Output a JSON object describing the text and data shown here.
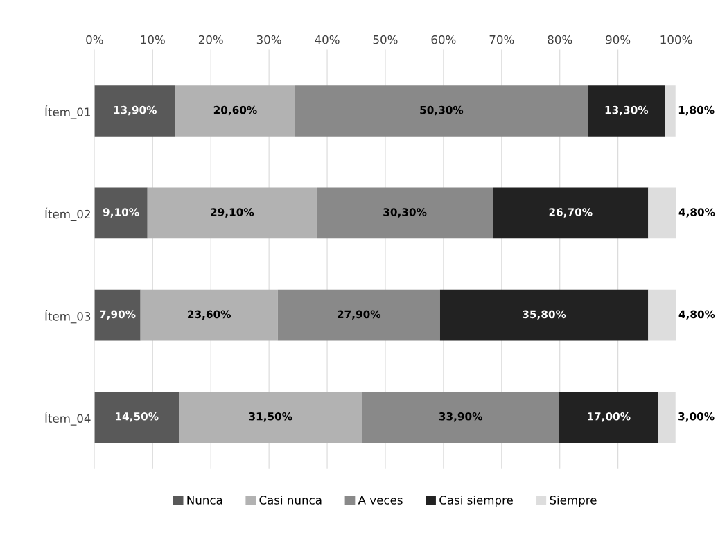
{
  "chart_data": {
    "type": "bar",
    "orientation": "horizontal",
    "stacked": true,
    "categories": [
      "Ítem_01",
      "Ítem_02",
      "Ítem_03",
      "Ítem_04"
    ],
    "series": [
      {
        "name": "Nunca",
        "color": "#595959",
        "values": [
          13.9,
          9.1,
          7.9,
          14.5
        ],
        "value_labels": [
          "13,90%",
          "9,10%",
          "7,90%",
          "14,50%"
        ]
      },
      {
        "name": "Casi nunca",
        "color": "#b2b2b2",
        "values": [
          20.6,
          29.1,
          23.6,
          31.5
        ],
        "value_labels": [
          "20,60%",
          "29,10%",
          "23,60%",
          "31,50%"
        ]
      },
      {
        "name": "A veces",
        "color": "#898989",
        "values": [
          50.3,
          30.3,
          27.9,
          33.9
        ],
        "value_labels": [
          "50,30%",
          "30,30%",
          "27,90%",
          "33,90%"
        ]
      },
      {
        "name": "Casi siempre",
        "color": "#222222",
        "values": [
          13.3,
          26.7,
          35.8,
          17.0
        ],
        "value_labels": [
          "13,30%",
          "26,70%",
          "35,80%",
          "17,00%"
        ]
      },
      {
        "name": "Siempre",
        "color": "#dddddd",
        "values": [
          1.8,
          4.8,
          4.8,
          3.0
        ],
        "value_labels": [
          "1,80%",
          "4,80%",
          "4,80%",
          "3,00%"
        ]
      }
    ],
    "xlim": [
      0,
      100
    ],
    "xticks": [
      {
        "value": 0,
        "label": "0%"
      },
      {
        "value": 10,
        "label": "10%"
      },
      {
        "value": 20,
        "label": "20%"
      },
      {
        "value": 30,
        "label": "30%"
      },
      {
        "value": 40,
        "label": "40%"
      },
      {
        "value": 50,
        "label": "50%"
      },
      {
        "value": 60,
        "label": "60%"
      },
      {
        "value": 70,
        "label": "70%"
      },
      {
        "value": 80,
        "label": "80%"
      },
      {
        "value": 90,
        "label": "90%"
      },
      {
        "value": 100,
        "label": "100%"
      }
    ],
    "grid": "x",
    "legend": "bottom"
  }
}
